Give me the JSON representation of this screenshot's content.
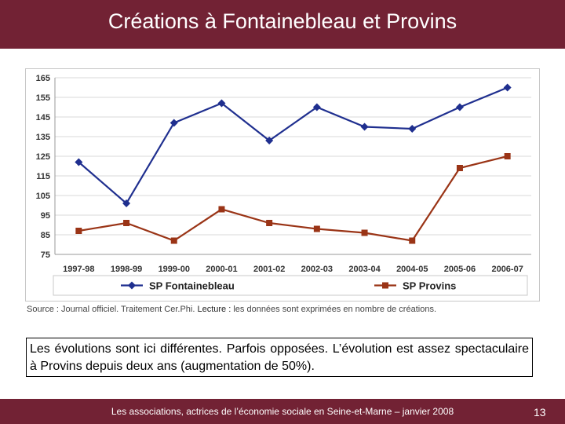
{
  "header": {
    "title": "Créations à Fontainebleau et Provins"
  },
  "chart_data": {
    "type": "line",
    "title": "",
    "xlabel": "",
    "ylabel": "",
    "categories": [
      "1997-98",
      "1998-99",
      "1999-00",
      "2000-01",
      "2001-02",
      "2002-03",
      "2003-04",
      "2004-05",
      "2005-06",
      "2006-07"
    ],
    "ylim": [
      75,
      165
    ],
    "yticks": [
      75,
      85,
      95,
      105,
      115,
      125,
      135,
      145,
      155,
      165
    ],
    "grid": true,
    "legend": "bottom",
    "series": [
      {
        "name": "SP Fontainebleau",
        "color": "#1f2f8f",
        "marker": "diamond",
        "values": [
          122,
          101,
          142,
          152,
          133,
          150,
          140,
          139,
          150,
          160
        ]
      },
      {
        "name": "SP Provins",
        "color": "#9a3416",
        "marker": "square",
        "values": [
          87,
          91,
          82,
          98,
          91,
          88,
          86,
          82,
          119,
          125
        ]
      }
    ]
  },
  "source": {
    "text": "Source : Journal officiel. Traitement Cer.Phi.",
    "lecture_label": "Lecture :",
    "lecture_text": "les données sont exprimées en nombre de créations."
  },
  "note": {
    "text": "Les évolutions sont ici différentes. Parfois opposées. L’évolution est assez spectaculaire à Provins depuis deux ans (augmentation de 50%)."
  },
  "footer": {
    "text": "Les associations, actrices de l’économie sociale en Seine-et-Marne – janvier 2008",
    "page": "13"
  }
}
